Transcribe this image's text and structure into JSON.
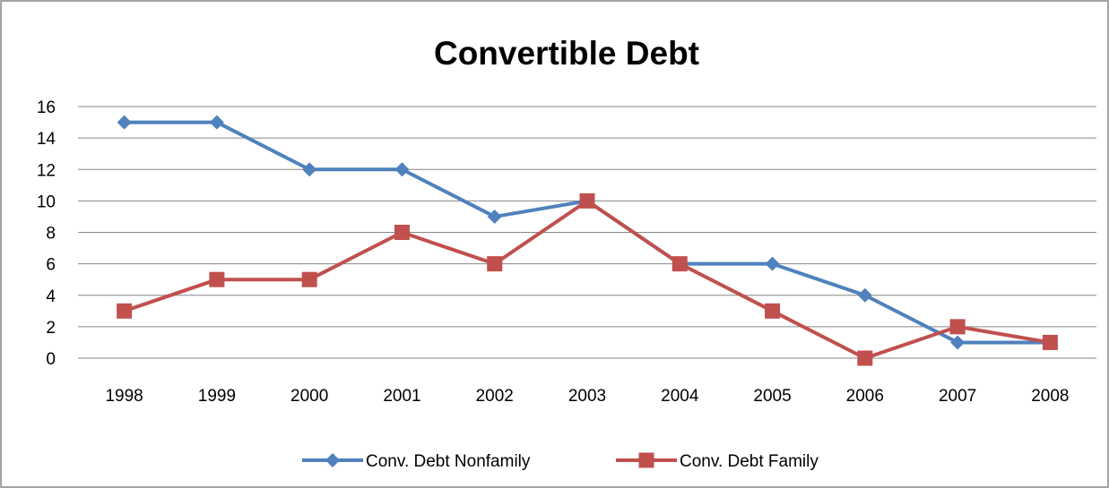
{
  "chart_data": {
    "type": "line",
    "title": "Convertible Debt",
    "categories": [
      "1998",
      "1999",
      "2000",
      "2001",
      "2002",
      "2003",
      "2004",
      "2005",
      "2006",
      "2007",
      "2008"
    ],
    "series": [
      {
        "name": "Conv. Debt Nonfamily",
        "values": [
          15,
          15,
          12,
          12,
          9,
          10,
          6,
          6,
          4,
          1,
          1
        ],
        "color": "#4F81BD",
        "marker": "diamond"
      },
      {
        "name": "Conv. Debt Family",
        "values": [
          3,
          5,
          5,
          8,
          6,
          10,
          6,
          3,
          0,
          2,
          1
        ],
        "color": "#C0504D",
        "marker": "square"
      }
    ],
    "ylim": [
      0,
      16
    ],
    "yticks": [
      0,
      2,
      4,
      6,
      8,
      10,
      12,
      14,
      16
    ],
    "ytick_labels": [
      "0",
      "2",
      "4",
      "6",
      "8",
      "10",
      "12",
      "14",
      "16"
    ],
    "grid": true,
    "legend_position": "bottom",
    "xlabel": "",
    "ylabel": ""
  }
}
